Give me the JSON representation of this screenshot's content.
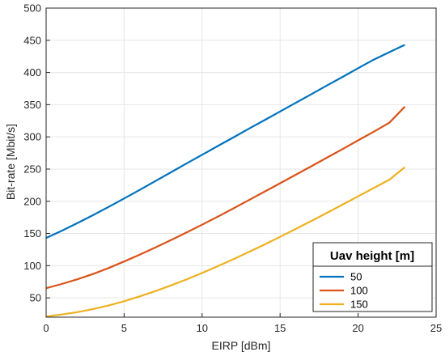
{
  "chart_data": {
    "type": "line",
    "xlabel": "EIRP [dBm]",
    "ylabel": "Bit-rate [Mbit/s]",
    "xlim": [
      0,
      25
    ],
    "ylim": [
      20,
      500
    ],
    "xticks": [
      0,
      5,
      10,
      15,
      20,
      25
    ],
    "yticks": [
      50,
      100,
      150,
      200,
      250,
      300,
      350,
      400,
      450,
      500
    ],
    "grid": true,
    "legend": {
      "title": "Uav height [m]",
      "placement": "bottom-right"
    },
    "x": [
      0,
      1,
      2,
      3,
      4,
      5,
      6,
      7,
      8,
      9,
      10,
      11,
      12,
      13,
      14,
      15,
      16,
      17,
      18,
      19,
      20,
      21,
      22,
      23
    ],
    "series": [
      {
        "name": "50",
        "color": "#0072BD",
        "values": [
          143,
          154.2,
          166,
          178.3,
          191.1,
          204.3,
          217.7,
          231.3,
          244.9,
          258.6,
          272.2,
          285.7,
          299.1,
          312.6,
          326,
          339.4,
          352.8,
          366.3,
          379.7,
          393.1,
          406.6,
          420,
          431.5,
          443
        ]
      },
      {
        "name": "100",
        "color": "#D95319",
        "values": [
          65,
          71.5,
          78.8,
          87,
          96.3,
          106.4,
          117.1,
          128.2,
          139.6,
          151.4,
          163.6,
          176.1,
          188.9,
          201.8,
          214.9,
          228,
          241.1,
          254.4,
          267.7,
          281,
          294.5,
          308,
          322,
          347
        ]
      },
      {
        "name": "150",
        "color": "#EDB120",
        "values": [
          21,
          24.1,
          27.8,
          32.4,
          38.1,
          44.8,
          52.3,
          60.4,
          69.2,
          78.6,
          88.6,
          99.1,
          110,
          121.3,
          132.9,
          144.8,
          157,
          169.4,
          182,
          194.8,
          207.6,
          220.5,
          233.5,
          253
        ]
      }
    ]
  }
}
